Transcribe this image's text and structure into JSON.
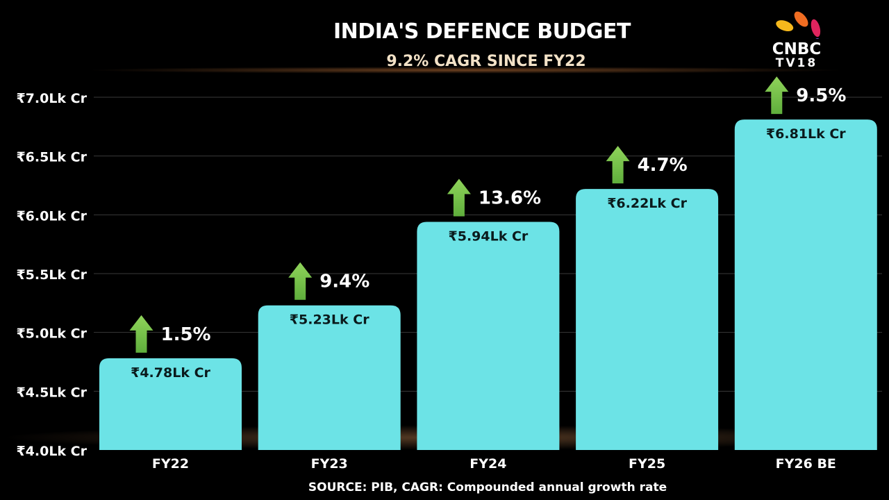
{
  "chart_data": {
    "type": "bar",
    "title": "INDIA'S DEFENCE BUDGET",
    "subtitle": "9.2% CAGR SINCE FY22",
    "categories": [
      "FY22",
      "FY23",
      "FY24",
      "FY25",
      "FY26 BE"
    ],
    "values": [
      4.78,
      5.23,
      5.94,
      6.22,
      6.81
    ],
    "value_labels": [
      "₹4.78Lk Cr",
      "₹5.23Lk Cr",
      "₹5.94Lk Cr",
      "₹6.22Lk Cr",
      "₹6.81Lk Cr"
    ],
    "growth_labels": [
      "1.5%",
      "9.4%",
      "13.6%",
      "4.7%",
      "9.5%"
    ],
    "unit": "₹ Lakh Crore",
    "ylim": [
      4.0,
      7.0
    ],
    "yticks": [
      4.0,
      4.5,
      5.0,
      5.5,
      6.0,
      6.5,
      7.0
    ],
    "ytick_labels": [
      "₹4.0Lk Cr",
      "₹4.5Lk Cr",
      "₹5.0Lk Cr",
      "₹5.5Lk Cr",
      "₹6.0Lk Cr",
      "₹6.5Lk Cr",
      "₹7.0Lk Cr"
    ],
    "grid": true,
    "bar_color": "#6ce3e6",
    "arrow_color": "#5fae3c",
    "source": "SOURCE: PIB, CAGR: Compounded annual growth rate"
  },
  "logo": {
    "line1": "CNBC",
    "line2": "TV18"
  }
}
